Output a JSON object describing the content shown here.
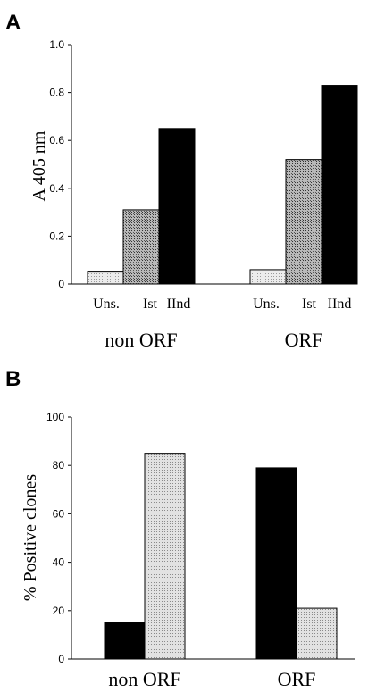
{
  "chart_data": [
    {
      "panel": "A",
      "type": "bar",
      "ylabel": "A 405 nm",
      "ylim": [
        0,
        1.0
      ],
      "yticks": [
        "0",
        "0.2",
        "0.4",
        "0.6",
        "0.8",
        "1.0"
      ],
      "groups": [
        "non ORF",
        "ORF"
      ],
      "categories": [
        "Uns.",
        "Ist",
        "IInd"
      ],
      "values": [
        [
          0.05,
          0.31,
          0.65
        ],
        [
          0.06,
          0.52,
          0.83
        ]
      ],
      "bar_colors": [
        "#e6e6e6",
        "#9a9a9a",
        "#000000"
      ]
    },
    {
      "panel": "B",
      "type": "bar",
      "ylabel": "% Positive clones",
      "ylim": [
        0,
        100
      ],
      "yticks": [
        "0",
        "20",
        "40",
        "60",
        "80",
        "100"
      ],
      "groups": [
        "non ORF",
        "ORF"
      ],
      "values": [
        [
          15,
          85
        ],
        [
          79,
          21
        ]
      ],
      "bar_colors": [
        "#000000",
        "#d9d9d9"
      ]
    }
  ]
}
